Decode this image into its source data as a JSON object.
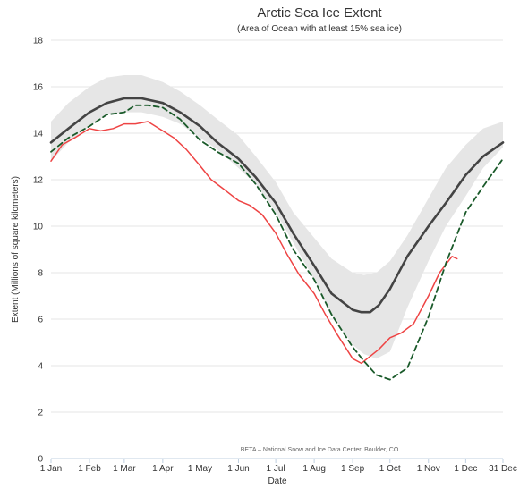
{
  "chart_data": {
    "type": "line",
    "title": "Arctic Sea Ice Extent",
    "subtitle": "(Area of Ocean with at least 15% sea ice)",
    "xlabel": "Date",
    "ylabel": "Extent (Millions of square kilometers)",
    "credit": "BETA – National Snow and Ice Data Center, Boulder, CO",
    "ylim": [
      0,
      18
    ],
    "yticks": [
      0,
      2,
      4,
      6,
      8,
      10,
      12,
      14,
      16,
      18
    ],
    "xlim": [
      "01-01",
      "12-31"
    ],
    "xticks": [
      {
        "date": "01-01",
        "label": "1 Jan"
      },
      {
        "date": "02-01",
        "label": "1 Feb"
      },
      {
        "date": "03-01",
        "label": "1 Mar"
      },
      {
        "date": "04-01",
        "label": "1 Apr"
      },
      {
        "date": "05-01",
        "label": "1 May"
      },
      {
        "date": "06-01",
        "label": "1 Jun"
      },
      {
        "date": "07-01",
        "label": "1 Jul"
      },
      {
        "date": "08-01",
        "label": "1 Aug"
      },
      {
        "date": "09-01",
        "label": "1 Sep"
      },
      {
        "date": "10-01",
        "label": "1 Oct"
      },
      {
        "date": "11-01",
        "label": "1 Nov"
      },
      {
        "date": "12-01",
        "label": "1 Dec"
      },
      {
        "date": "12-31",
        "label": "31 Dec"
      }
    ],
    "grid": true,
    "legend": "none",
    "band": {
      "color": "#e6e6e6",
      "x": [
        "01-01",
        "01-15",
        "02-01",
        "02-15",
        "03-01",
        "03-15",
        "04-01",
        "04-15",
        "05-01",
        "05-15",
        "06-01",
        "06-15",
        "07-01",
        "07-15",
        "08-01",
        "08-15",
        "09-01",
        "09-10",
        "09-20",
        "10-01",
        "10-15",
        "11-01",
        "11-15",
        "12-01",
        "12-15",
        "12-31"
      ],
      "lower": [
        12.8,
        13.6,
        14.3,
        14.8,
        14.9,
        14.9,
        14.7,
        14.4,
        13.8,
        13.3,
        12.5,
        11.8,
        10.6,
        9.3,
        7.7,
        6.2,
        4.9,
        4.5,
        4.3,
        4.6,
        6.5,
        8.5,
        10.0,
        11.3,
        12.5,
        13.4
      ],
      "upper": [
        14.5,
        15.3,
        16.0,
        16.4,
        16.5,
        16.5,
        16.2,
        15.8,
        15.2,
        14.6,
        13.9,
        13.0,
        11.9,
        10.6,
        9.5,
        8.6,
        8.0,
        7.9,
        8.0,
        8.5,
        9.6,
        11.2,
        12.5,
        13.5,
        14.2,
        14.5
      ]
    },
    "series": [
      {
        "color": "#444444",
        "dash": "solid",
        "x": [
          "01-01",
          "01-15",
          "02-01",
          "02-15",
          "03-01",
          "03-15",
          "04-01",
          "04-15",
          "05-01",
          "05-15",
          "06-01",
          "06-15",
          "07-01",
          "07-15",
          "08-01",
          "08-15",
          "09-01",
          "09-08",
          "09-15",
          "09-22",
          "10-01",
          "10-15",
          "11-01",
          "11-15",
          "12-01",
          "12-15",
          "12-31"
        ],
        "values": [
          13.6,
          14.2,
          14.9,
          15.3,
          15.5,
          15.5,
          15.3,
          14.9,
          14.3,
          13.6,
          12.9,
          12.1,
          11.0,
          9.7,
          8.3,
          7.1,
          6.4,
          6.3,
          6.3,
          6.6,
          7.3,
          8.7,
          10.0,
          11.0,
          12.2,
          13.0,
          13.6
        ]
      },
      {
        "color": "#ee4444",
        "dash": "solid",
        "x": [
          "01-01",
          "01-10",
          "01-20",
          "02-01",
          "02-10",
          "02-20",
          "03-01",
          "03-10",
          "03-20",
          "04-01",
          "04-10",
          "04-20",
          "05-01",
          "05-10",
          "05-20",
          "06-01",
          "06-10",
          "06-20",
          "07-01",
          "07-10",
          "07-20",
          "08-01",
          "08-10",
          "08-20",
          "09-01",
          "09-08",
          "09-15",
          "09-22",
          "10-01",
          "10-10",
          "10-20",
          "11-01",
          "11-10",
          "11-20",
          "11-24"
        ],
        "values": [
          12.8,
          13.5,
          13.8,
          14.2,
          14.1,
          14.2,
          14.4,
          14.4,
          14.5,
          14.1,
          13.8,
          13.3,
          12.6,
          12.0,
          11.6,
          11.1,
          10.9,
          10.5,
          9.7,
          8.8,
          7.9,
          7.1,
          6.2,
          5.3,
          4.3,
          4.1,
          4.4,
          4.7,
          5.2,
          5.4,
          5.8,
          7.0,
          8.0,
          8.7,
          8.6
        ]
      },
      {
        "color": "#1a5a2a",
        "dash": "dashed",
        "x": [
          "01-01",
          "01-15",
          "02-01",
          "02-15",
          "03-01",
          "03-10",
          "03-20",
          "04-01",
          "04-15",
          "05-01",
          "05-15",
          "06-01",
          "06-15",
          "07-01",
          "07-15",
          "08-01",
          "08-15",
          "09-01",
          "09-10",
          "09-20",
          "10-01",
          "10-15",
          "11-01",
          "11-15",
          "12-01",
          "12-15",
          "12-31"
        ],
        "values": [
          13.2,
          13.8,
          14.3,
          14.8,
          14.9,
          15.2,
          15.2,
          15.1,
          14.6,
          13.7,
          13.2,
          12.7,
          11.8,
          10.5,
          9.0,
          7.7,
          6.2,
          4.8,
          4.2,
          3.6,
          3.4,
          3.9,
          6.1,
          8.4,
          10.6,
          11.7,
          12.9
        ]
      }
    ]
  }
}
